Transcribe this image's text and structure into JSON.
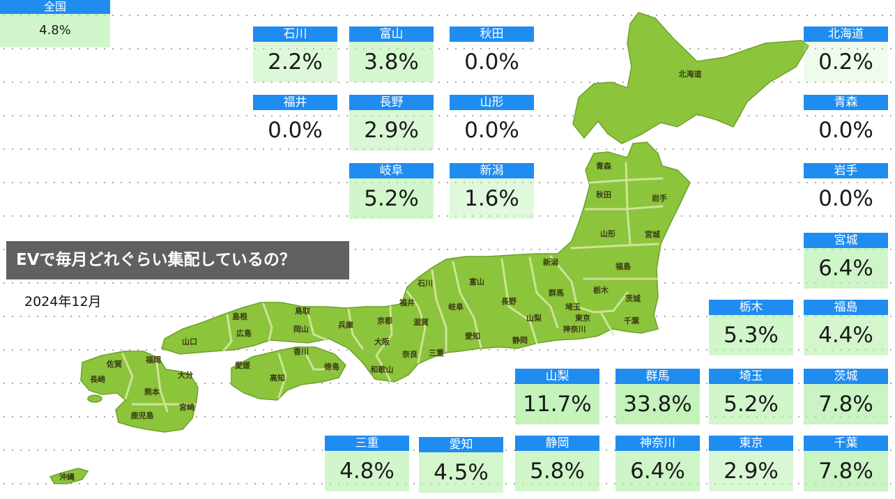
{
  "title": "EVで毎月どれぐらい集配しているの？",
  "date": "2024年12月",
  "national": {
    "label": "全国",
    "value": "4.8%",
    "rate": 4.8
  },
  "colors": {
    "header": "#1f8cf0",
    "land": "#8cc43c",
    "border": "#d9eaa8",
    "title_bg": "#606060"
  },
  "cards": [
    {
      "label": "石川",
      "value": "2.2%",
      "rate": 2.2
    },
    {
      "label": "富山",
      "value": "3.8%",
      "rate": 3.8
    },
    {
      "label": "秋田",
      "value": "0.0%",
      "rate": 0.0
    },
    {
      "label": "北海道",
      "value": "0.2%",
      "rate": 0.2
    },
    {
      "label": "福井",
      "value": "0.0%",
      "rate": 0.0
    },
    {
      "label": "長野",
      "value": "2.9%",
      "rate": 2.9
    },
    {
      "label": "山形",
      "value": "0.0%",
      "rate": 0.0
    },
    {
      "label": "青森",
      "value": "0.0%",
      "rate": 0.0
    },
    {
      "label": "岐阜",
      "value": "5.2%",
      "rate": 5.2
    },
    {
      "label": "新潟",
      "value": "1.6%",
      "rate": 1.6
    },
    {
      "label": "岩手",
      "value": "0.0%",
      "rate": 0.0
    },
    {
      "label": "宮城",
      "value": "6.4%",
      "rate": 6.4
    },
    {
      "label": "栃木",
      "value": "5.3%",
      "rate": 5.3
    },
    {
      "label": "福島",
      "value": "4.4%",
      "rate": 4.4
    },
    {
      "label": "山梨",
      "value": "11.7%",
      "rate": 11.7
    },
    {
      "label": "群馬",
      "value": "33.8%",
      "rate": 33.8
    },
    {
      "label": "埼玉",
      "value": "5.2%",
      "rate": 5.2
    },
    {
      "label": "茨城",
      "value": "7.8%",
      "rate": 7.8
    },
    {
      "label": "三重",
      "value": "4.8%",
      "rate": 4.8
    },
    {
      "label": "愛知",
      "value": "4.5%",
      "rate": 4.5
    },
    {
      "label": "静岡",
      "value": "5.8%",
      "rate": 5.8
    },
    {
      "label": "神奈川",
      "value": "6.4%",
      "rate": 6.4
    },
    {
      "label": "東京",
      "value": "2.9%",
      "rate": 2.9
    },
    {
      "label": "千葉",
      "value": "7.8%",
      "rate": 7.8
    }
  ],
  "map_labels": [
    "北海道",
    "青森",
    "秋田",
    "岩手",
    "山形",
    "宮城",
    "新潟",
    "福島",
    "石川",
    "富山",
    "群馬",
    "栃木",
    "福井",
    "長野",
    "茨城",
    "埼玉",
    "岐阜",
    "山梨",
    "東京",
    "千葉",
    "鳥取",
    "島根",
    "神奈川",
    "京都",
    "滋賀",
    "兵庫",
    "岡山",
    "広島",
    "山口",
    "愛知",
    "静岡",
    "大阪",
    "三重",
    "奈良",
    "和歌山",
    "香川",
    "愛媛",
    "徳島",
    "高知",
    "福岡",
    "佐賀",
    "長崎",
    "大分",
    "熊本",
    "宮崎",
    "鹿児島",
    "沖縄"
  ]
}
